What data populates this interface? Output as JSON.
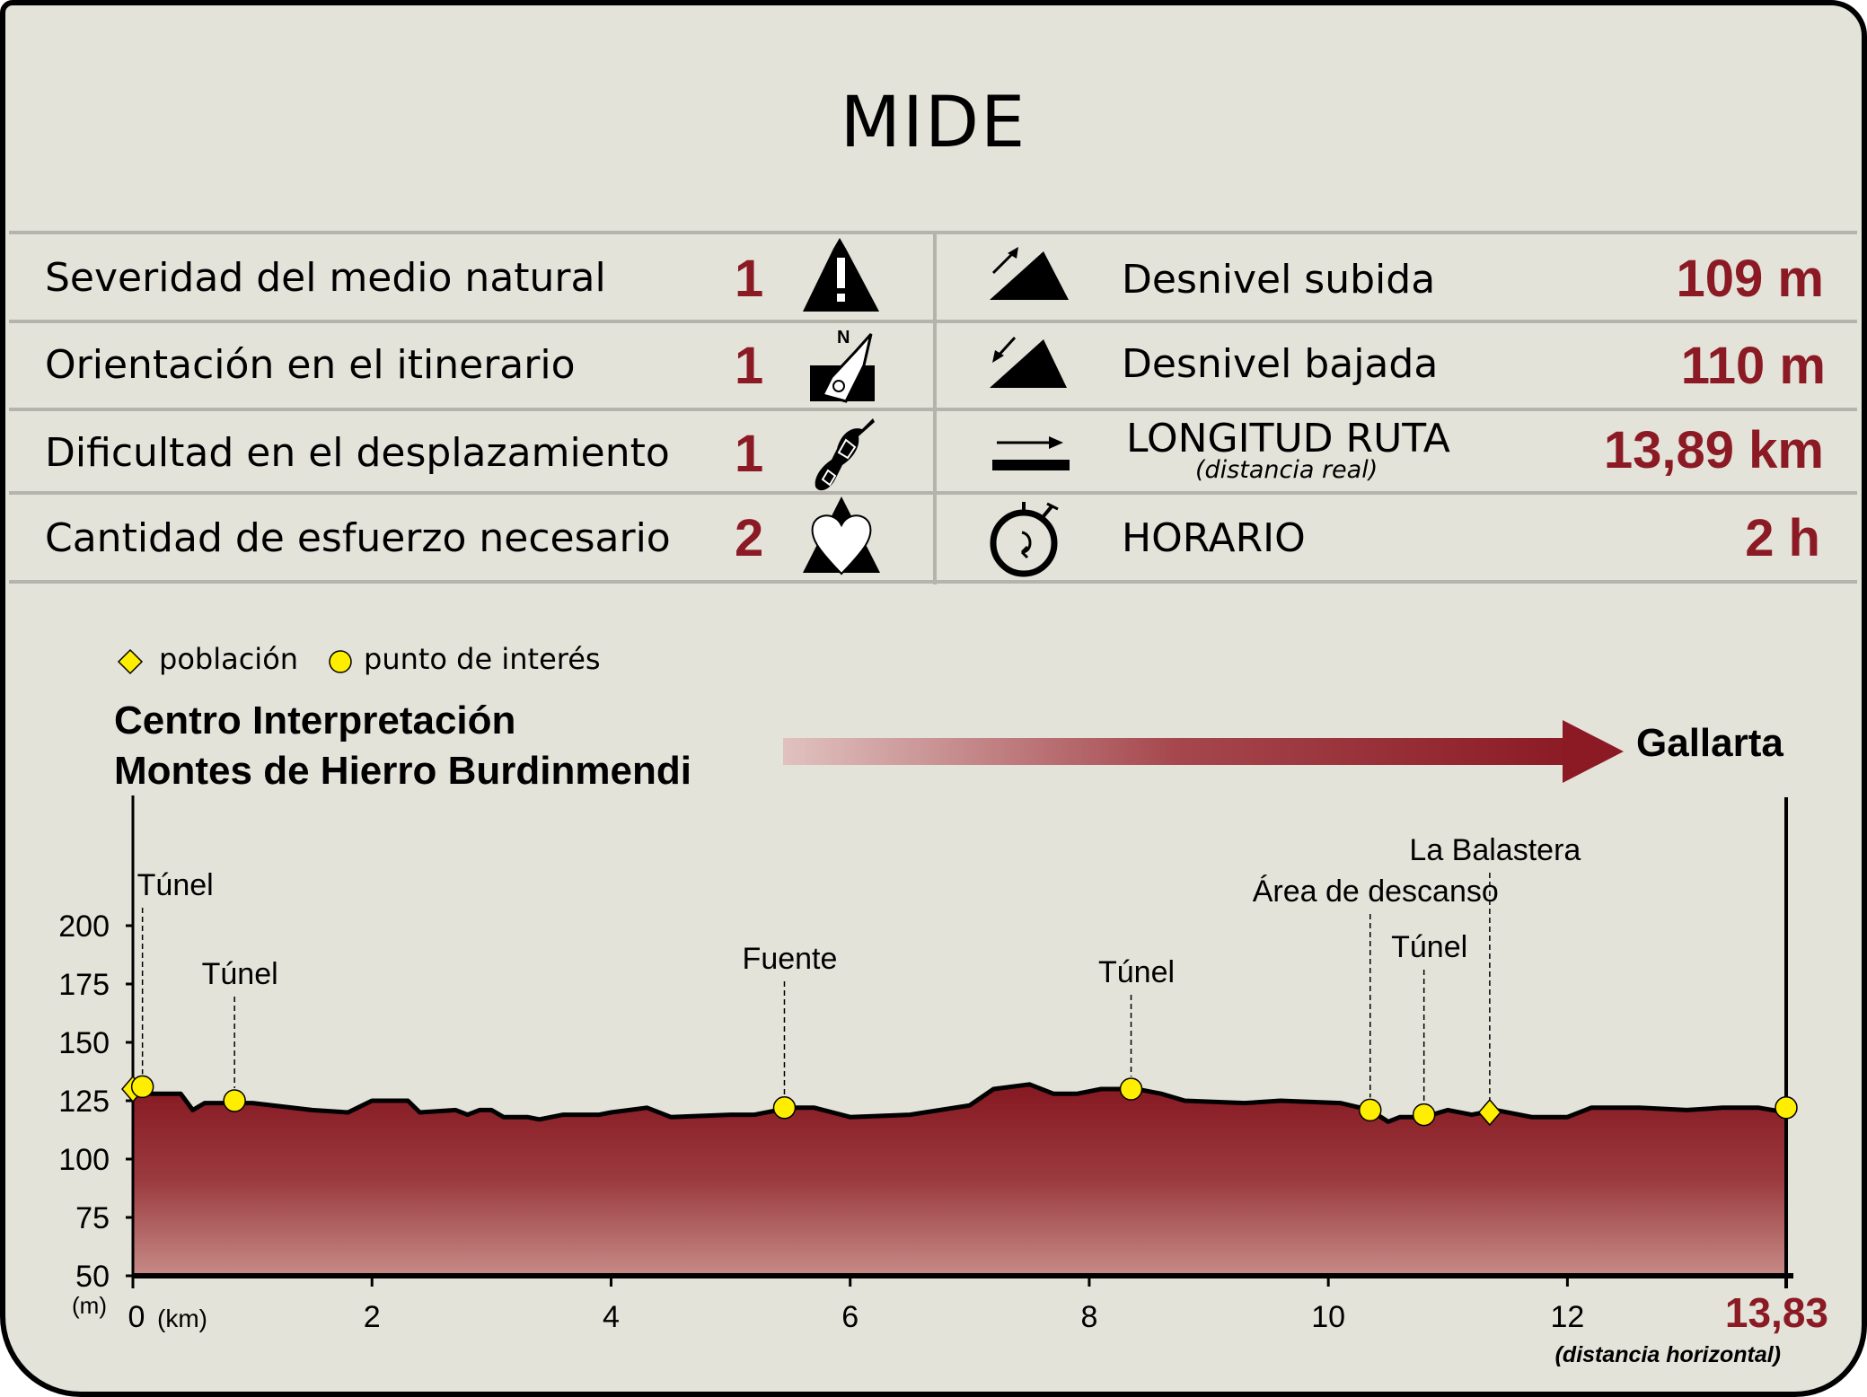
{
  "title": "MIDE",
  "mide": [
    {
      "label": "Severidad del medio natural",
      "value": "1",
      "icon": "warning-mountain-icon"
    },
    {
      "label": "Orientación en el itinerario",
      "value": "1",
      "icon": "compass-icon"
    },
    {
      "label": "Dificultad en el desplazamiento",
      "value": "1",
      "icon": "footprint-icon"
    },
    {
      "label": "Cantidad de esfuerzo necesario",
      "value": "2",
      "icon": "heart-mountain-icon"
    }
  ],
  "stats": [
    {
      "label": "Desnivel subida",
      "value": "109 m",
      "icon": "ascent-icon"
    },
    {
      "label": "Desnivel bajada",
      "value": "110 m",
      "icon": "descent-icon"
    },
    {
      "label": "LONGITUD RUTA",
      "sublabel": "(distancia real)",
      "value": "13,89 km",
      "icon": "distance-arrow-icon"
    },
    {
      "label": "HORARIO",
      "value": "2 h",
      "icon": "stopwatch-icon"
    }
  ],
  "legend": {
    "town": "población",
    "poi": "punto de interés"
  },
  "route": {
    "start_line1": "Centro Interpretación",
    "start_line2": "Montes de Hierro Burdinmendi",
    "end": "Gallarta"
  },
  "colors": {
    "accent": "#8b1a24",
    "background": "#e3e3da",
    "marker": "#ffee00"
  },
  "chart_data": {
    "type": "area",
    "ylabel": "(m)",
    "xlabel": "(km)",
    "x_end_label": "13,83",
    "x_end_note": "(distancia horizontal)",
    "xlim": [
      0,
      13.83
    ],
    "ylim": [
      50,
      200
    ],
    "yticks": [
      "50",
      "75",
      "100",
      "125",
      "150",
      "175",
      "200"
    ],
    "xticks": [
      "0",
      "2",
      "4",
      "6",
      "8",
      "10",
      "12"
    ],
    "profile": [
      [
        0,
        128
      ],
      [
        0.4,
        128
      ],
      [
        0.5,
        121
      ],
      [
        0.6,
        124
      ],
      [
        1.0,
        124
      ],
      [
        1.5,
        121
      ],
      [
        1.8,
        120
      ],
      [
        2.0,
        125
      ],
      [
        2.3,
        125
      ],
      [
        2.4,
        120
      ],
      [
        2.7,
        121
      ],
      [
        2.8,
        119
      ],
      [
        2.9,
        121
      ],
      [
        3.0,
        121
      ],
      [
        3.1,
        118
      ],
      [
        3.3,
        118
      ],
      [
        3.4,
        117
      ],
      [
        3.6,
        119
      ],
      [
        3.9,
        119
      ],
      [
        4.0,
        120
      ],
      [
        4.3,
        122
      ],
      [
        4.5,
        118
      ],
      [
        5.0,
        119
      ],
      [
        5.2,
        119
      ],
      [
        5.5,
        122
      ],
      [
        5.7,
        122
      ],
      [
        6.0,
        118
      ],
      [
        6.5,
        119
      ],
      [
        7.0,
        123
      ],
      [
        7.2,
        130
      ],
      [
        7.5,
        132
      ],
      [
        7.7,
        128
      ],
      [
        7.9,
        128
      ],
      [
        8.1,
        130
      ],
      [
        8.4,
        130
      ],
      [
        8.6,
        128
      ],
      [
        8.8,
        125
      ],
      [
        9.3,
        124
      ],
      [
        9.6,
        125
      ],
      [
        10.1,
        124
      ],
      [
        10.35,
        121
      ],
      [
        10.5,
        116
      ],
      [
        10.6,
        118
      ],
      [
        10.8,
        118
      ],
      [
        11.0,
        121
      ],
      [
        11.2,
        119
      ],
      [
        11.4,
        121
      ],
      [
        11.7,
        118
      ],
      [
        12.0,
        118
      ],
      [
        12.2,
        122
      ],
      [
        12.6,
        122
      ],
      [
        13.0,
        121
      ],
      [
        13.3,
        122
      ],
      [
        13.6,
        122
      ],
      [
        13.83,
        120
      ]
    ],
    "points": [
      {
        "km": 0,
        "elev": 130,
        "kind": "town",
        "label": ""
      },
      {
        "km": 0.08,
        "elev": 131,
        "kind": "poi",
        "label": "Túnel"
      },
      {
        "km": 0.85,
        "elev": 125,
        "kind": "poi",
        "label": "Túnel"
      },
      {
        "km": 5.45,
        "elev": 122,
        "kind": "poi",
        "label": "Fuente"
      },
      {
        "km": 8.35,
        "elev": 130,
        "kind": "poi",
        "label": "Túnel"
      },
      {
        "km": 10.35,
        "elev": 121,
        "kind": "poi",
        "label": "Área de descanso"
      },
      {
        "km": 10.8,
        "elev": 119,
        "kind": "poi",
        "label": "Túnel"
      },
      {
        "km": 11.35,
        "elev": 120,
        "kind": "town",
        "label": "La Balastera"
      },
      {
        "km": 13.83,
        "elev": 122,
        "kind": "poi",
        "label": ""
      }
    ]
  }
}
